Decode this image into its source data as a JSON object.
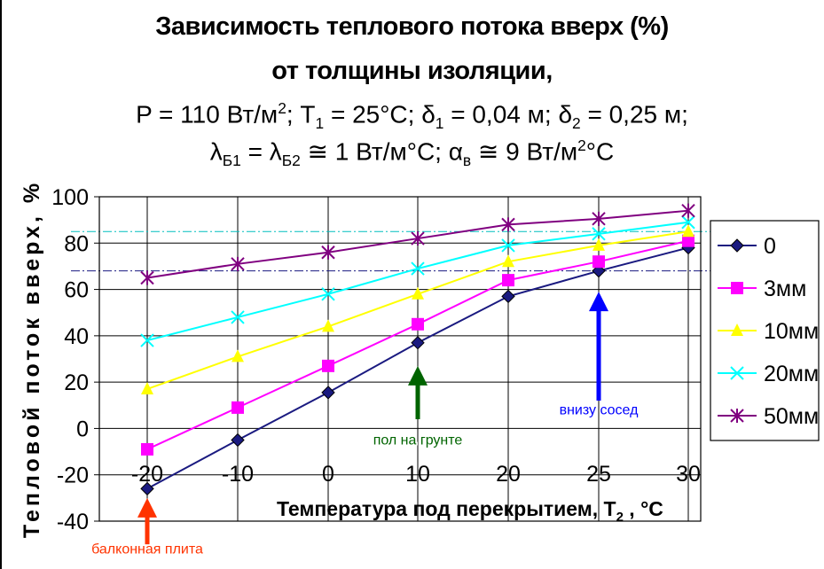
{
  "title": {
    "line1": "Зависимость теплового потока вверх (%)",
    "line2": "от толщины изоляции,",
    "formula1": {
      "p_label": "P = 110 Вт/м",
      "p_sup": "2",
      "t_label": "; T",
      "t_sub": "1",
      "t_value": " =  25°C; ",
      "d1_sym": "δ",
      "d1_sub": "1",
      "d1_value": " = 0,04 м; ",
      "d2_sym": "δ",
      "d2_sub": "2",
      "d2_value": " = 0,25 м;"
    },
    "formula2": {
      "l1_sym": "λ",
      "l1_sub": "Б1",
      "eq1": " = ",
      "l2_sym": "λ",
      "l2_sub": "Б2",
      "l2_value": " ≅ 1 Вт/м°C; ",
      "a_sym": "α",
      "a_sub": "в",
      "a_value": " ≅ 9 Вт/м",
      "a_sup": "2",
      "a_unit": "°C"
    }
  },
  "chart_data": {
    "type": "line",
    "ylabel": "Тепловой поток вверх, %",
    "xlabel_main": "Температура под перекрытием, T",
    "xlabel_sub": "2",
    "xlabel_unit": " , °C",
    "categories": [
      "-20",
      "-10",
      "0",
      "10",
      "20",
      "25",
      "30"
    ],
    "ylim": [
      -40,
      100
    ],
    "yticks": [
      "100",
      "80",
      "60",
      "40",
      "20",
      "0",
      "-20",
      "-40"
    ],
    "grid": true,
    "legend_position": "right",
    "series": [
      {
        "name": "0",
        "color": "#1a1a80",
        "marker": "diamond",
        "values": [
          -26,
          -5,
          15.5,
          37,
          57,
          68,
          78
        ]
      },
      {
        "name": "3мм",
        "color": "#ff00ff",
        "marker": "square",
        "values": [
          -9,
          9,
          27,
          45,
          64,
          72,
          81
        ]
      },
      {
        "name": "10мм",
        "color": "#ffff00",
        "marker": "triangle",
        "values": [
          17,
          31,
          44,
          58,
          72,
          79,
          85
        ]
      },
      {
        "name": "20мм",
        "color": "#00ffff",
        "marker": "x",
        "values": [
          38,
          48,
          58,
          69,
          79,
          84,
          89
        ]
      },
      {
        "name": "50мм",
        "color": "#800080",
        "marker": "star",
        "values": [
          65,
          71,
          76,
          82,
          88,
          90.5,
          94
        ]
      }
    ],
    "reference_lines": [
      {
        "value": 85,
        "color": "#00bfbf"
      },
      {
        "value": 68,
        "color": "#1a1a80"
      }
    ],
    "annotations": [
      {
        "text": "пол на грунте",
        "x": 10,
        "color": "#006400",
        "arrow_from": 4,
        "arrow_to": 27,
        "label_y": -7
      },
      {
        "text": "внизу сосед",
        "x": 25,
        "color": "#0000ff",
        "arrow_from": 12,
        "arrow_to": 59,
        "label_y": 6
      },
      {
        "text": "балконная плита",
        "x": -20,
        "color": "#ff3300",
        "arrow_from": -50,
        "arrow_to": -30,
        "label_y": -54
      }
    ]
  }
}
